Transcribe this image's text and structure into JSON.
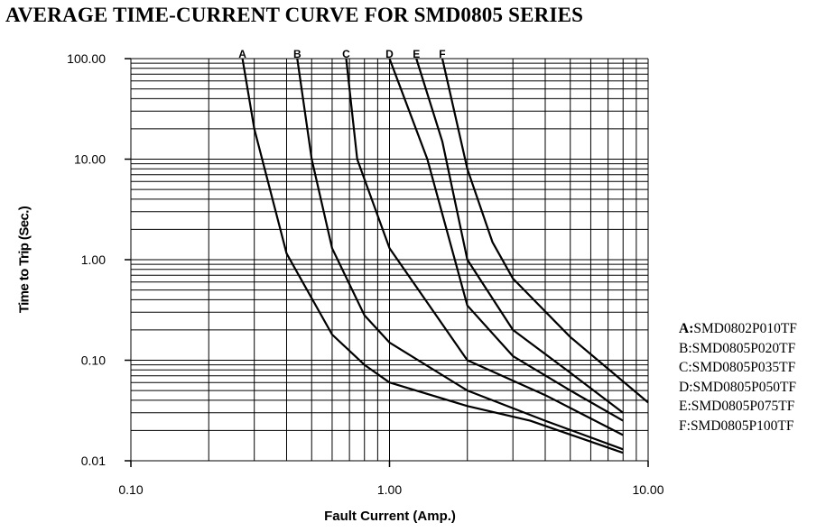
{
  "chart_data": {
    "type": "line",
    "title": "AVERAGE TIME-CURRENT CURVE FOR SMD0805 SERIES",
    "xlabel": "Fault Current (Amp.)",
    "ylabel": "Time to Trip (Sec.)",
    "x_scale": "log",
    "y_scale": "log",
    "xlim": [
      0.1,
      10
    ],
    "ylim": [
      0.01,
      100
    ],
    "grid": true,
    "x_ticks": [
      {
        "value": 0.1,
        "label": "0.10"
      },
      {
        "value": 1,
        "label": "1.00"
      },
      {
        "value": 10,
        "label": "10.00"
      }
    ],
    "y_ticks": [
      {
        "value": 0.01,
        "label": "0.01"
      },
      {
        "value": 0.1,
        "label": "0.10"
      },
      {
        "value": 1,
        "label": "1.00"
      },
      {
        "value": 10,
        "label": "10.00"
      },
      {
        "value": 100,
        "label": "100.00"
      }
    ],
    "legend_position": "right",
    "series": [
      {
        "name": "A",
        "legend": "SMD0802P010TF",
        "points": [
          [
            0.27,
            100
          ],
          [
            0.3,
            20
          ],
          [
            0.4,
            1.15
          ],
          [
            0.6,
            0.18
          ],
          [
            0.8,
            0.09
          ],
          [
            1.0,
            0.06
          ],
          [
            2.0,
            0.035
          ],
          [
            3.5,
            0.025
          ],
          [
            8.0,
            0.012
          ]
        ]
      },
      {
        "name": "B",
        "legend": "SMD0805P020TF",
        "points": [
          [
            0.44,
            100
          ],
          [
            0.5,
            10
          ],
          [
            0.6,
            1.3
          ],
          [
            0.8,
            0.28
          ],
          [
            1.0,
            0.15
          ],
          [
            2.0,
            0.05
          ],
          [
            4.0,
            0.025
          ],
          [
            8.0,
            0.013
          ]
        ]
      },
      {
        "name": "C",
        "legend": "SMD0805P035TF",
        "points": [
          [
            0.68,
            100
          ],
          [
            0.75,
            10
          ],
          [
            1.0,
            1.3
          ],
          [
            2.0,
            0.1
          ],
          [
            4.0,
            0.045
          ],
          [
            8.0,
            0.018
          ]
        ]
      },
      {
        "name": "D",
        "legend": "SMD0805P050TF",
        "points": [
          [
            1.0,
            100
          ],
          [
            1.4,
            10
          ],
          [
            2.0,
            0.35
          ],
          [
            3.0,
            0.11
          ],
          [
            5.0,
            0.05
          ],
          [
            8.0,
            0.025
          ]
        ]
      },
      {
        "name": "E",
        "legend": "SMD0805P075TF",
        "points": [
          [
            1.27,
            100
          ],
          [
            1.6,
            15
          ],
          [
            2.0,
            1.0
          ],
          [
            3.0,
            0.2
          ],
          [
            5.0,
            0.075
          ],
          [
            8.0,
            0.03
          ]
        ]
      },
      {
        "name": "F",
        "legend": "SMD0805P100TF",
        "points": [
          [
            1.6,
            100
          ],
          [
            2.0,
            8
          ],
          [
            2.5,
            1.5
          ],
          [
            3.0,
            0.65
          ],
          [
            5.0,
            0.17
          ],
          [
            10.0,
            0.038
          ]
        ]
      }
    ]
  }
}
